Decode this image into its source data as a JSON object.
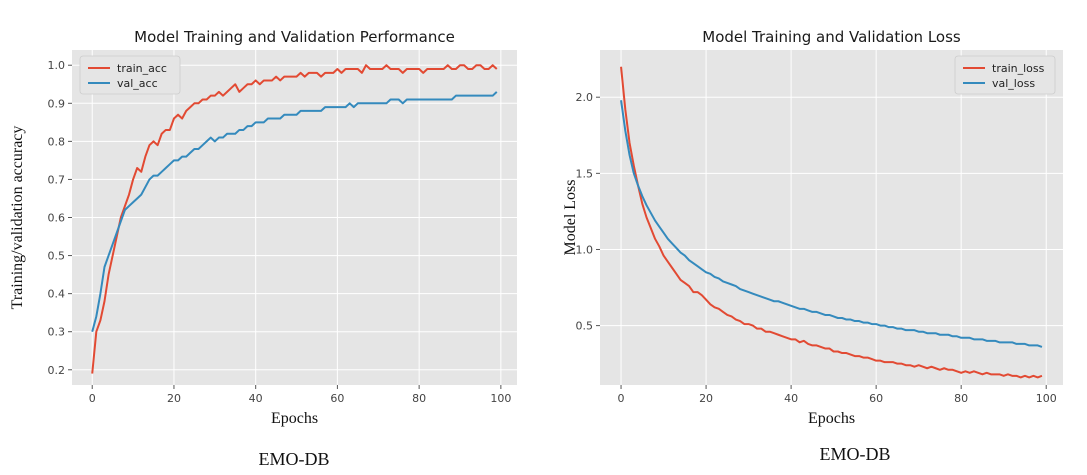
{
  "chart_data": [
    {
      "type": "line",
      "title": "Model Training and Validation Performance",
      "xlabel": "Epochs",
      "ylabel": "Training/validation accuracy",
      "caption": "EMO-DB",
      "xlim": [
        -4.95,
        103.95
      ],
      "ylim": [
        0.16,
        1.04
      ],
      "xticks": [
        0,
        20,
        40,
        60,
        80,
        100
      ],
      "yticks": [
        0.2,
        0.3,
        0.4,
        0.5,
        0.6,
        0.7,
        0.8,
        0.9,
        1.0
      ],
      "ytick_labels": [
        "0.2",
        "0.3",
        "0.4",
        "0.5",
        "0.6",
        "0.7",
        "0.8",
        "0.9",
        "1.0"
      ],
      "grid": true,
      "legend_position": "top-left",
      "series": [
        {
          "name": "train_acc",
          "color": "#E24A33",
          "x": [
            0,
            1,
            2,
            3,
            4,
            5,
            6,
            7,
            8,
            9,
            10,
            11,
            12,
            13,
            14,
            15,
            16,
            17,
            18,
            19,
            20,
            21,
            22,
            23,
            24,
            25,
            26,
            27,
            28,
            29,
            30,
            31,
            32,
            33,
            34,
            35,
            36,
            37,
            38,
            39,
            40,
            41,
            42,
            43,
            44,
            45,
            46,
            47,
            48,
            49,
            50,
            51,
            52,
            53,
            54,
            55,
            56,
            57,
            58,
            59,
            60,
            61,
            62,
            63,
            64,
            65,
            66,
            67,
            68,
            69,
            70,
            71,
            72,
            73,
            74,
            75,
            76,
            77,
            78,
            79,
            80,
            81,
            82,
            83,
            84,
            85,
            86,
            87,
            88,
            89,
            90,
            91,
            92,
            93,
            94,
            95,
            96,
            97,
            98,
            99
          ],
          "y": [
            0.19,
            0.3,
            0.33,
            0.38,
            0.45,
            0.5,
            0.55,
            0.6,
            0.63,
            0.66,
            0.7,
            0.73,
            0.72,
            0.76,
            0.79,
            0.8,
            0.79,
            0.82,
            0.83,
            0.83,
            0.86,
            0.87,
            0.86,
            0.88,
            0.89,
            0.9,
            0.9,
            0.91,
            0.91,
            0.92,
            0.92,
            0.93,
            0.92,
            0.93,
            0.94,
            0.95,
            0.93,
            0.94,
            0.95,
            0.95,
            0.96,
            0.95,
            0.96,
            0.96,
            0.96,
            0.97,
            0.96,
            0.97,
            0.97,
            0.97,
            0.97,
            0.98,
            0.97,
            0.98,
            0.98,
            0.98,
            0.97,
            0.98,
            0.98,
            0.98,
            0.99,
            0.98,
            0.99,
            0.99,
            0.99,
            0.99,
            0.98,
            1.0,
            0.99,
            0.99,
            0.99,
            0.99,
            1.0,
            0.99,
            0.99,
            0.99,
            0.98,
            0.99,
            0.99,
            0.99,
            0.99,
            0.98,
            0.99,
            0.99,
            0.99,
            0.99,
            0.99,
            1.0,
            0.99,
            0.99,
            1.0,
            1.0,
            0.99,
            0.99,
            1.0,
            1.0,
            0.99,
            0.99,
            1.0,
            0.99
          ]
        },
        {
          "name": "val_acc",
          "color": "#348ABD",
          "x": [
            0,
            1,
            2,
            3,
            4,
            5,
            6,
            7,
            8,
            9,
            10,
            11,
            12,
            13,
            14,
            15,
            16,
            17,
            18,
            19,
            20,
            21,
            22,
            23,
            24,
            25,
            26,
            27,
            28,
            29,
            30,
            31,
            32,
            33,
            34,
            35,
            36,
            37,
            38,
            39,
            40,
            41,
            42,
            43,
            44,
            45,
            46,
            47,
            48,
            49,
            50,
            51,
            52,
            53,
            54,
            55,
            56,
            57,
            58,
            59,
            60,
            61,
            62,
            63,
            64,
            65,
            66,
            67,
            68,
            69,
            70,
            71,
            72,
            73,
            74,
            75,
            76,
            77,
            78,
            79,
            80,
            81,
            82,
            83,
            84,
            85,
            86,
            87,
            88,
            89,
            90,
            91,
            92,
            93,
            94,
            95,
            96,
            97,
            98,
            99
          ],
          "y": [
            0.3,
            0.34,
            0.4,
            0.47,
            0.5,
            0.53,
            0.56,
            0.59,
            0.62,
            0.63,
            0.64,
            0.65,
            0.66,
            0.68,
            0.7,
            0.71,
            0.71,
            0.72,
            0.73,
            0.74,
            0.75,
            0.75,
            0.76,
            0.76,
            0.77,
            0.78,
            0.78,
            0.79,
            0.8,
            0.81,
            0.8,
            0.81,
            0.81,
            0.82,
            0.82,
            0.82,
            0.83,
            0.83,
            0.84,
            0.84,
            0.85,
            0.85,
            0.85,
            0.86,
            0.86,
            0.86,
            0.86,
            0.87,
            0.87,
            0.87,
            0.87,
            0.88,
            0.88,
            0.88,
            0.88,
            0.88,
            0.88,
            0.89,
            0.89,
            0.89,
            0.89,
            0.89,
            0.89,
            0.9,
            0.89,
            0.9,
            0.9,
            0.9,
            0.9,
            0.9,
            0.9,
            0.9,
            0.9,
            0.91,
            0.91,
            0.91,
            0.9,
            0.91,
            0.91,
            0.91,
            0.91,
            0.91,
            0.91,
            0.91,
            0.91,
            0.91,
            0.91,
            0.91,
            0.91,
            0.92,
            0.92,
            0.92,
            0.92,
            0.92,
            0.92,
            0.92,
            0.92,
            0.92,
            0.92,
            0.93
          ]
        }
      ]
    },
    {
      "type": "line",
      "title": "Model Training and Validation Loss",
      "xlabel": "Epochs",
      "ylabel": "Model Loss",
      "caption": "EMO-DB",
      "xlim": [
        -4.95,
        103.95
      ],
      "ylim": [
        0.11,
        2.31
      ],
      "xticks": [
        0,
        20,
        40,
        60,
        80,
        100
      ],
      "yticks": [
        0.5,
        1.0,
        1.5,
        2.0
      ],
      "ytick_labels": [
        "0.5",
        "1.0",
        "1.5",
        "2.0"
      ],
      "grid": true,
      "legend_position": "top-right",
      "series": [
        {
          "name": "train_loss",
          "color": "#E24A33",
          "x": [
            0,
            1,
            2,
            3,
            4,
            5,
            6,
            7,
            8,
            9,
            10,
            11,
            12,
            13,
            14,
            15,
            16,
            17,
            18,
            19,
            20,
            21,
            22,
            23,
            24,
            25,
            26,
            27,
            28,
            29,
            30,
            31,
            32,
            33,
            34,
            35,
            36,
            37,
            38,
            39,
            40,
            41,
            42,
            43,
            44,
            45,
            46,
            47,
            48,
            49,
            50,
            51,
            52,
            53,
            54,
            55,
            56,
            57,
            58,
            59,
            60,
            61,
            62,
            63,
            64,
            65,
            66,
            67,
            68,
            69,
            70,
            71,
            72,
            73,
            74,
            75,
            76,
            77,
            78,
            79,
            80,
            81,
            82,
            83,
            84,
            85,
            86,
            87,
            88,
            89,
            90,
            91,
            92,
            93,
            94,
            95,
            96,
            97,
            98,
            99
          ],
          "y": [
            2.2,
            1.92,
            1.7,
            1.55,
            1.42,
            1.3,
            1.21,
            1.14,
            1.07,
            1.02,
            0.96,
            0.92,
            0.88,
            0.84,
            0.8,
            0.78,
            0.76,
            0.72,
            0.72,
            0.7,
            0.67,
            0.64,
            0.62,
            0.61,
            0.59,
            0.57,
            0.56,
            0.54,
            0.53,
            0.51,
            0.51,
            0.5,
            0.48,
            0.48,
            0.46,
            0.46,
            0.45,
            0.44,
            0.43,
            0.42,
            0.41,
            0.41,
            0.39,
            0.4,
            0.38,
            0.37,
            0.37,
            0.36,
            0.35,
            0.35,
            0.33,
            0.33,
            0.32,
            0.32,
            0.31,
            0.3,
            0.3,
            0.29,
            0.29,
            0.28,
            0.27,
            0.27,
            0.26,
            0.26,
            0.26,
            0.25,
            0.25,
            0.24,
            0.24,
            0.23,
            0.24,
            0.23,
            0.22,
            0.23,
            0.22,
            0.21,
            0.22,
            0.21,
            0.21,
            0.2,
            0.19,
            0.2,
            0.19,
            0.2,
            0.19,
            0.18,
            0.19,
            0.18,
            0.18,
            0.18,
            0.17,
            0.18,
            0.17,
            0.17,
            0.16,
            0.17,
            0.16,
            0.17,
            0.16,
            0.17
          ]
        },
        {
          "name": "val_loss",
          "color": "#348ABD",
          "x": [
            0,
            1,
            2,
            3,
            4,
            5,
            6,
            7,
            8,
            9,
            10,
            11,
            12,
            13,
            14,
            15,
            16,
            17,
            18,
            19,
            20,
            21,
            22,
            23,
            24,
            25,
            26,
            27,
            28,
            29,
            30,
            31,
            32,
            33,
            34,
            35,
            36,
            37,
            38,
            39,
            40,
            41,
            42,
            43,
            44,
            45,
            46,
            47,
            48,
            49,
            50,
            51,
            52,
            53,
            54,
            55,
            56,
            57,
            58,
            59,
            60,
            61,
            62,
            63,
            64,
            65,
            66,
            67,
            68,
            69,
            70,
            71,
            72,
            73,
            74,
            75,
            76,
            77,
            78,
            79,
            80,
            81,
            82,
            83,
            84,
            85,
            86,
            87,
            88,
            89,
            90,
            91,
            92,
            93,
            94,
            95,
            96,
            97,
            98,
            99
          ],
          "y": [
            1.98,
            1.78,
            1.62,
            1.5,
            1.42,
            1.35,
            1.29,
            1.24,
            1.19,
            1.15,
            1.11,
            1.07,
            1.04,
            1.01,
            0.98,
            0.96,
            0.93,
            0.91,
            0.89,
            0.87,
            0.85,
            0.84,
            0.82,
            0.81,
            0.79,
            0.78,
            0.77,
            0.76,
            0.74,
            0.73,
            0.72,
            0.71,
            0.7,
            0.69,
            0.68,
            0.67,
            0.66,
            0.66,
            0.65,
            0.64,
            0.63,
            0.62,
            0.61,
            0.61,
            0.6,
            0.59,
            0.59,
            0.58,
            0.57,
            0.57,
            0.56,
            0.55,
            0.55,
            0.54,
            0.54,
            0.53,
            0.53,
            0.52,
            0.52,
            0.51,
            0.51,
            0.5,
            0.5,
            0.49,
            0.49,
            0.48,
            0.48,
            0.47,
            0.47,
            0.47,
            0.46,
            0.46,
            0.45,
            0.45,
            0.45,
            0.44,
            0.44,
            0.44,
            0.43,
            0.43,
            0.42,
            0.42,
            0.42,
            0.41,
            0.41,
            0.41,
            0.4,
            0.4,
            0.4,
            0.39,
            0.39,
            0.39,
            0.39,
            0.38,
            0.38,
            0.38,
            0.37,
            0.37,
            0.37,
            0.36
          ]
        }
      ]
    }
  ]
}
